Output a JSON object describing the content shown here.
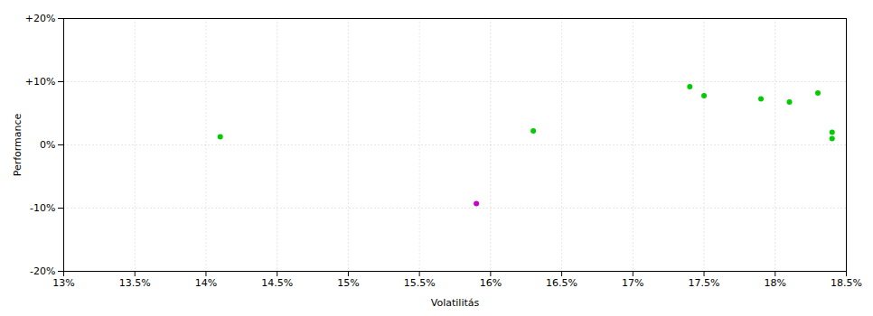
{
  "chart_data": {
    "type": "scatter",
    "xlabel": "Volatilitás",
    "ylabel": "Performance",
    "xlim": [
      0.13,
      0.185
    ],
    "ylim": [
      -0.2,
      0.2
    ],
    "xticks": [
      {
        "value": 0.13,
        "label": "13%"
      },
      {
        "value": 0.135,
        "label": "13.5%"
      },
      {
        "value": 0.14,
        "label": "14%"
      },
      {
        "value": 0.145,
        "label": "14.5%"
      },
      {
        "value": 0.15,
        "label": "15%"
      },
      {
        "value": 0.155,
        "label": "15.5%"
      },
      {
        "value": 0.16,
        "label": "16%"
      },
      {
        "value": 0.165,
        "label": "16.5%"
      },
      {
        "value": 0.17,
        "label": "17%"
      },
      {
        "value": 0.175,
        "label": "17.5%"
      },
      {
        "value": 0.18,
        "label": "18%"
      },
      {
        "value": 0.185,
        "label": "18.5%"
      }
    ],
    "yticks": [
      {
        "value": -0.2,
        "label": "-20%"
      },
      {
        "value": -0.1,
        "label": "-10%"
      },
      {
        "value": 0.0,
        "label": "0%"
      },
      {
        "value": 0.1,
        "label": "+10%"
      },
      {
        "value": 0.2,
        "label": "+20%"
      }
    ],
    "grid": true,
    "series": [
      {
        "color": "#00cc00",
        "x": [
          0.141,
          0.163,
          0.174,
          0.175,
          0.179,
          0.181,
          0.183,
          0.184,
          0.184
        ],
        "values": [
          0.013,
          0.022,
          0.092,
          0.078,
          0.073,
          0.068,
          0.082,
          0.02,
          0.01
        ]
      },
      {
        "color": "#cc00cc",
        "x": [
          0.159
        ],
        "values": [
          -0.093
        ]
      }
    ]
  }
}
